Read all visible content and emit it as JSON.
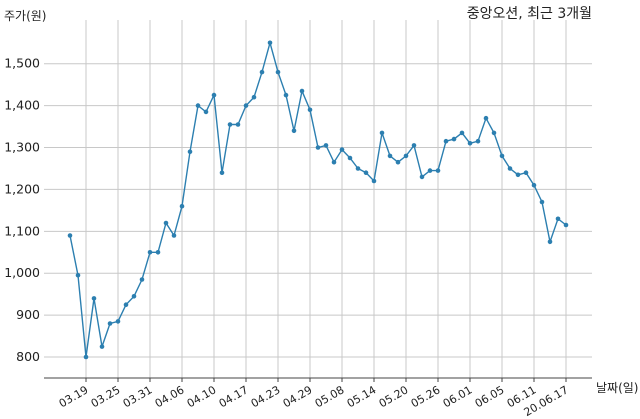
{
  "chart_data": {
    "type": "line",
    "title": "중앙오션, 최근 3개월",
    "xlabel": "날짜(일)",
    "ylabel": "주가(원)",
    "ylim": [
      750,
      1590
    ],
    "yticks": [
      800,
      900,
      1000,
      1100,
      1200,
      1300,
      1400,
      1500
    ],
    "ytick_labels": [
      "800",
      "900",
      "1,000",
      "1,100",
      "1,200",
      "1,300",
      "1,400",
      "1,500"
    ],
    "xtick_labels": [
      "03.19",
      "03.25",
      "03.31",
      "04.06",
      "04.10",
      "04.17",
      "04.23",
      "04.29",
      "05.08",
      "05.14",
      "05.20",
      "05.26",
      "06.01",
      "06.05",
      "06.11",
      "20.06.17"
    ],
    "xtick_index": [
      2,
      6,
      10,
      14,
      18,
      22,
      26,
      30,
      34,
      38,
      42,
      46,
      50,
      54,
      58,
      62
    ],
    "grid": true,
    "series": [
      {
        "values": [
          1090,
          995,
          800,
          940,
          825,
          880,
          885,
          925,
          945,
          985,
          1050,
          1050,
          1120,
          1090,
          1160,
          1290,
          1400,
          1385,
          1425,
          1240,
          1355,
          1355,
          1400,
          1420,
          1480,
          1550,
          1480,
          1425,
          1340,
          1435,
          1390,
          1300,
          1305,
          1265,
          1295,
          1275,
          1250,
          1240,
          1220,
          1335,
          1280,
          1265,
          1280,
          1305,
          1230,
          1245,
          1245,
          1315,
          1320,
          1335,
          1310,
          1315,
          1370,
          1335,
          1280,
          1250,
          1235,
          1240,
          1210,
          1170,
          1075,
          1130,
          1115
        ],
        "color": "#2c7fb0"
      }
    ]
  }
}
